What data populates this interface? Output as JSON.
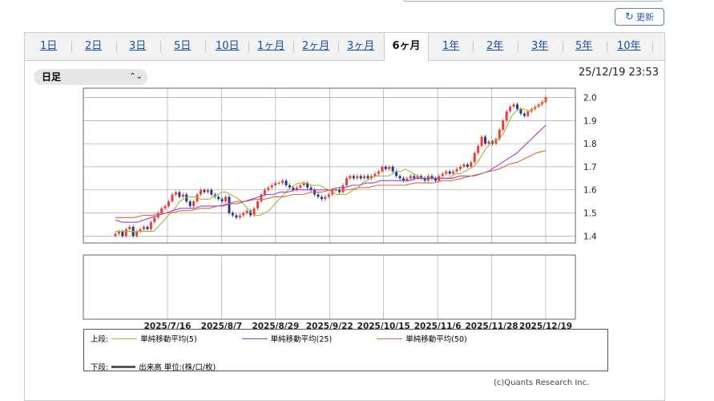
{
  "refresh": {
    "label": "更新",
    "icon": "refresh-icon"
  },
  "tabs": [
    {
      "label": "1日"
    },
    {
      "label": "2日"
    },
    {
      "label": "3日"
    },
    {
      "label": "5日"
    },
    {
      "label": "10日"
    },
    {
      "label": "1ヶ月"
    },
    {
      "label": "2ヶ月"
    },
    {
      "label": "3ヶ月"
    },
    {
      "label": "6ヶ月",
      "active": true
    },
    {
      "label": "1年"
    },
    {
      "label": "2年"
    },
    {
      "label": "3年"
    },
    {
      "label": "5年"
    },
    {
      "label": "10年"
    }
  ],
  "period_select": {
    "value": "日足"
  },
  "timestamp": "25/12/19 23:53",
  "legend": {
    "upper_label": "上段:",
    "lower_label": "下段:",
    "ma5": "単純移動平均(5)",
    "ma25": "単純移動平均(25)",
    "ma50": "単純移動平均(50)",
    "volume": "出来高 単位:(株/口/枚)"
  },
  "copyright": "(c)Quants Research Inc.",
  "colors": {
    "up": "#e8403a",
    "down": "#1f3c88",
    "ma5": "#a8b43c",
    "ma25": "#9b3fd4",
    "ma50": "#e0683c",
    "tab_link": "#1a4fa0"
  },
  "chart_data": {
    "type": "candlestick",
    "y_ticks": [
      "2.0",
      "1.9",
      "1.8",
      "1.7",
      "1.6",
      "1.5",
      "1.4"
    ],
    "ylim": [
      1.37,
      2.04
    ],
    "x_ticks": [
      "2025/7/16",
      "2025/8/7",
      "2025/8/29",
      "2025/9/22",
      "2025/10/15",
      "2025/11/6",
      "2025/11/28",
      "2025/12/19"
    ],
    "grid": true,
    "close": [
      1.41,
      1.42,
      1.4,
      1.43,
      1.44,
      1.4,
      1.42,
      1.43,
      1.44,
      1.43,
      1.46,
      1.48,
      1.5,
      1.52,
      1.53,
      1.55,
      1.58,
      1.59,
      1.57,
      1.58,
      1.55,
      1.53,
      1.55,
      1.58,
      1.6,
      1.59,
      1.6,
      1.58,
      1.57,
      1.56,
      1.55,
      1.57,
      1.5,
      1.49,
      1.48,
      1.49,
      1.5,
      1.51,
      1.49,
      1.52,
      1.55,
      1.58,
      1.6,
      1.61,
      1.62,
      1.63,
      1.63,
      1.64,
      1.62,
      1.61,
      1.6,
      1.61,
      1.62,
      1.63,
      1.61,
      1.6,
      1.58,
      1.57,
      1.56,
      1.57,
      1.58,
      1.6,
      1.6,
      1.59,
      1.62,
      1.65,
      1.66,
      1.65,
      1.66,
      1.65,
      1.66,
      1.65,
      1.66,
      1.67,
      1.68,
      1.7,
      1.69,
      1.7,
      1.68,
      1.66,
      1.65,
      1.64,
      1.65,
      1.66,
      1.65,
      1.66,
      1.65,
      1.64,
      1.66,
      1.65,
      1.64,
      1.66,
      1.67,
      1.68,
      1.67,
      1.68,
      1.69,
      1.7,
      1.71,
      1.7,
      1.72,
      1.76,
      1.79,
      1.83,
      1.8,
      1.81,
      1.8,
      1.82,
      1.86,
      1.9,
      1.94,
      1.96,
      1.97,
      1.95,
      1.93,
      1.92,
      1.94,
      1.95,
      1.96,
      1.97,
      1.98,
      2.0
    ],
    "series": [
      {
        "name": "単純移動平均(5)",
        "values": [
          1.42,
          1.42,
          1.42,
          1.42,
          1.42,
          1.42,
          1.42,
          1.42,
          1.42,
          1.42,
          1.44,
          1.46,
          1.48,
          1.5,
          1.52,
          1.55,
          1.56,
          1.57,
          1.57,
          1.57,
          1.56,
          1.56,
          1.56,
          1.57,
          1.58,
          1.59,
          1.59,
          1.58,
          1.57,
          1.56,
          1.54,
          1.52,
          1.5,
          1.49,
          1.49,
          1.5,
          1.51,
          1.53,
          1.55,
          1.57,
          1.59,
          1.61,
          1.62,
          1.63,
          1.63,
          1.63,
          1.62,
          1.62,
          1.62,
          1.61,
          1.6,
          1.59,
          1.58,
          1.58,
          1.58,
          1.59,
          1.6,
          1.61,
          1.63,
          1.64,
          1.65,
          1.66,
          1.66,
          1.66,
          1.66,
          1.67,
          1.68,
          1.68,
          1.69,
          1.68,
          1.67,
          1.66,
          1.65,
          1.65,
          1.65,
          1.65,
          1.65,
          1.65,
          1.65,
          1.66,
          1.67,
          1.67,
          1.68,
          1.69,
          1.7,
          1.72,
          1.75,
          1.78,
          1.8,
          1.81,
          1.82,
          1.84,
          1.88,
          1.92,
          1.94,
          1.95,
          1.95,
          1.94,
          1.95,
          1.96,
          1.97,
          1.99
        ]
      },
      {
        "name": "単純移動平均(25)",
        "values": [
          1.47,
          1.46,
          1.46,
          1.46,
          1.47,
          1.48,
          1.49,
          1.5,
          1.51,
          1.52,
          1.52,
          1.52,
          1.53,
          1.53,
          1.53,
          1.53,
          1.54,
          1.54,
          1.55,
          1.56,
          1.57,
          1.58,
          1.58,
          1.59,
          1.59,
          1.6,
          1.6,
          1.6,
          1.6,
          1.6,
          1.6,
          1.61,
          1.61,
          1.62,
          1.62,
          1.63,
          1.63,
          1.64,
          1.64,
          1.64,
          1.64,
          1.64,
          1.65,
          1.65,
          1.65,
          1.65,
          1.65,
          1.65,
          1.66,
          1.66,
          1.66,
          1.67,
          1.68,
          1.7,
          1.72,
          1.74,
          1.76,
          1.79,
          1.82,
          1.85,
          1.88
        ]
      },
      {
        "name": "単純移動平均(50)",
        "values": [
          1.48,
          1.48,
          1.48,
          1.49,
          1.49,
          1.5,
          1.5,
          1.51,
          1.51,
          1.52,
          1.52,
          1.53,
          1.54,
          1.55,
          1.55,
          1.56,
          1.56,
          1.57,
          1.57,
          1.58,
          1.58,
          1.59,
          1.59,
          1.6,
          1.6,
          1.6,
          1.61,
          1.61,
          1.62,
          1.62,
          1.62,
          1.62,
          1.63,
          1.63,
          1.63,
          1.64,
          1.64,
          1.65,
          1.66,
          1.67,
          1.68,
          1.69,
          1.71,
          1.72,
          1.74,
          1.76,
          1.77
        ]
      }
    ]
  }
}
